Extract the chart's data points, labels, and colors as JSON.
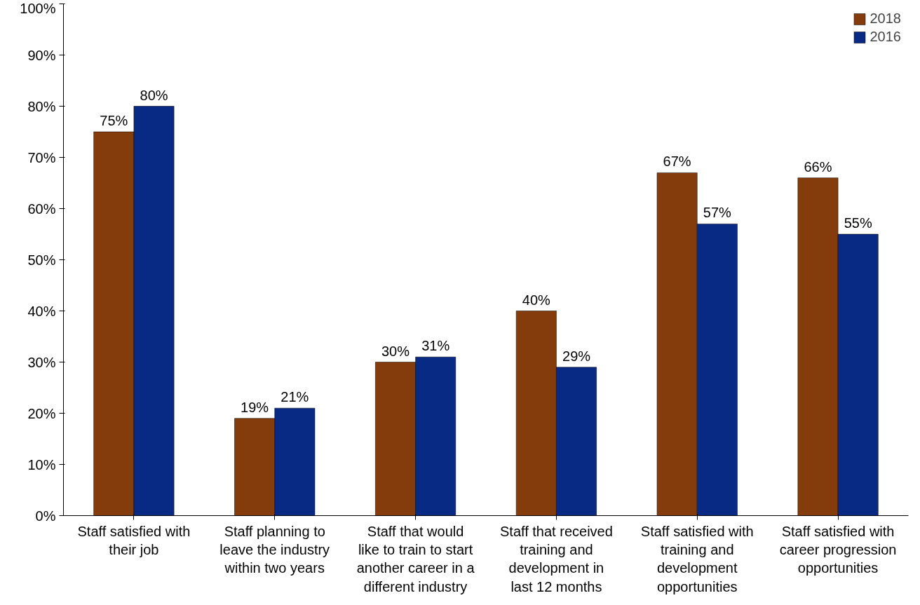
{
  "chart_data": {
    "type": "bar",
    "categories": [
      "Staff satisfied with\ntheir job",
      "Staff planning to\nleave the industry\nwithin two years",
      "Staff that would\nlike to train to start\nanother career in a\ndifferent industry",
      "Staff that received\ntraining and\ndevelopment in\nlast 12 months",
      "Staff satisfied with\ntraining and\ndevelopment\nopportunities",
      "Staff satisfied with\ncareer progression\nopportunities"
    ],
    "series": [
      {
        "name": "2018",
        "color": "#843c0c",
        "values": [
          75,
          19,
          30,
          40,
          67,
          66
        ],
        "value_labels": [
          "75%",
          "19%",
          "30%",
          "40%",
          "67%",
          "66%"
        ]
      },
      {
        "name": "2016",
        "color": "#082a84",
        "values": [
          80,
          21,
          31,
          29,
          57,
          55
        ],
        "value_labels": [
          "80%",
          "21%",
          "31%",
          "29%",
          "57%",
          "55%"
        ]
      }
    ],
    "ylim": [
      0,
      100
    ],
    "yticks": [
      {
        "value": 0,
        "label": "0%"
      },
      {
        "value": 10,
        "label": "10%"
      },
      {
        "value": 20,
        "label": "20%"
      },
      {
        "value": 30,
        "label": "30%"
      },
      {
        "value": 40,
        "label": "40%"
      },
      {
        "value": 50,
        "label": "50%"
      },
      {
        "value": 60,
        "label": "60%"
      },
      {
        "value": 70,
        "label": "70%"
      },
      {
        "value": 80,
        "label": "80%"
      },
      {
        "value": 90,
        "label": "90%"
      },
      {
        "value": 100,
        "label": "100%"
      }
    ],
    "legend": "top right",
    "grid": false
  }
}
